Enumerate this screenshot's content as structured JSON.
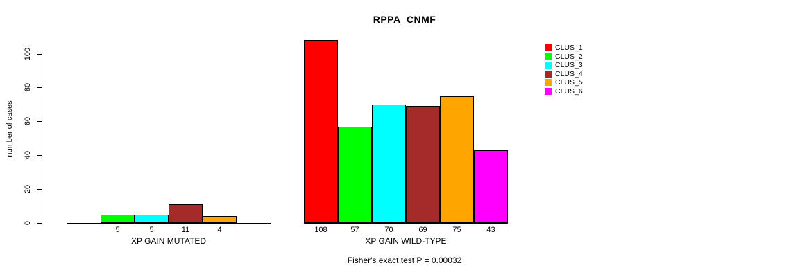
{
  "chart_data": {
    "type": "bar",
    "title": "RPPA_CNMF",
    "xlabel": "",
    "ylabel": "number of cases",
    "ylim": [
      0,
      110
    ],
    "y_ticks": [
      0,
      20,
      40,
      60,
      80,
      100
    ],
    "grid": false,
    "legend_position": "right",
    "categories": [
      "CLUS_1",
      "CLUS_2",
      "CLUS_3",
      "CLUS_4",
      "CLUS_5",
      "CLUS_6"
    ],
    "colors": [
      "#FF0000",
      "#00FF00",
      "#00FFFF",
      "#A52A2A",
      "#FFA500",
      "#FF00FF"
    ],
    "groups": [
      {
        "label": "XP GAIN MUTATED",
        "values": [
          0,
          5,
          5,
          11,
          4,
          0
        ]
      },
      {
        "label": "XP GAIN WILD-TYPE",
        "values": [
          108,
          57,
          70,
          69,
          75,
          43
        ]
      }
    ],
    "annotation": "Fisher's exact test P = 0.00032"
  }
}
